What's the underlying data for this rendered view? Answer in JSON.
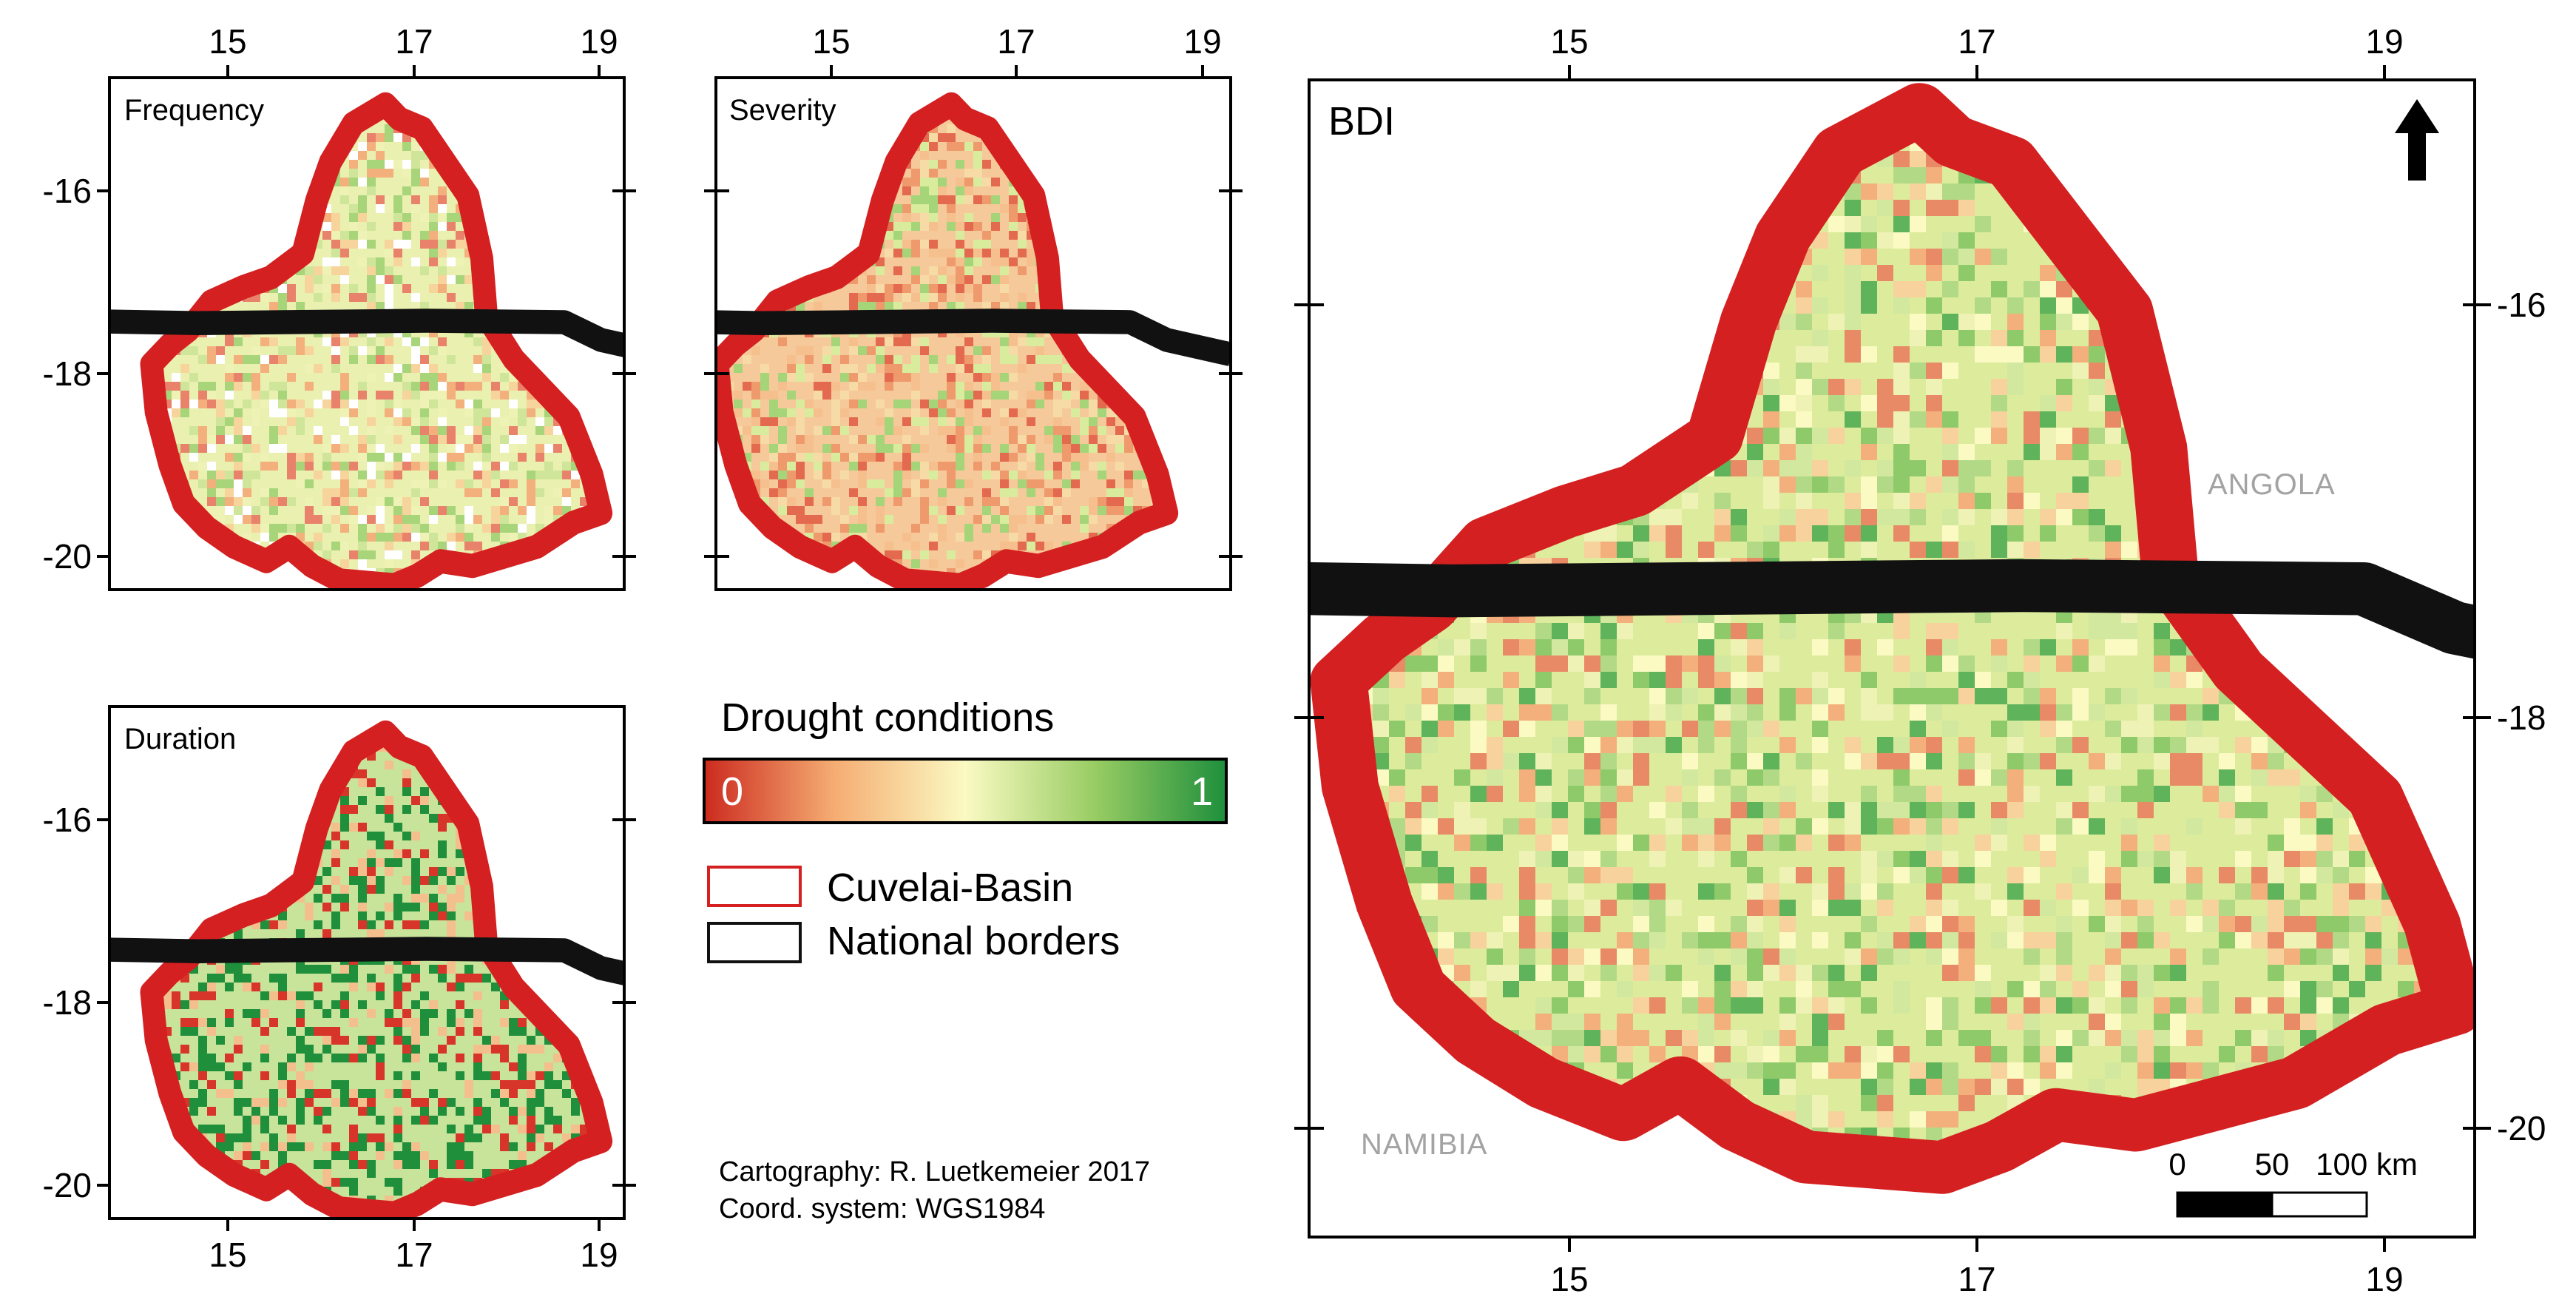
{
  "panels": {
    "frequency": {
      "title": "Frequency"
    },
    "severity": {
      "title": "Severity"
    },
    "duration": {
      "title": "Duration"
    },
    "bdi": {
      "title": "BDI"
    }
  },
  "small_axis": {
    "lon_ticks": [
      "15",
      "17",
      "19"
    ],
    "lat_ticks": [
      "-16",
      "-18",
      "-20"
    ]
  },
  "main_axis": {
    "lon_ticks": [
      "15",
      "17",
      "19"
    ],
    "lat_ticks": [
      "-16",
      "-18",
      "-20"
    ]
  },
  "countries": {
    "north": "ANGOLA",
    "south": "NAMIBIA"
  },
  "legend": {
    "title": "Drought conditions",
    "min_label": "0",
    "max_label": "1",
    "basin_label": "Cuvelai-Basin",
    "borders_label": "National borders",
    "colors": {
      "low": "#cc2a1e",
      "mid_low": "#f5ad73",
      "mid": "#fafac2",
      "mid_high": "#98cc63",
      "high": "#1e8f3c",
      "basin_outline": "#d42020",
      "border_line": "#111111"
    }
  },
  "credits": {
    "cartography": "Cartography: R. Luetkemeier 2017",
    "coord_system": "Coord. system: WGS1984"
  },
  "scale_bar": {
    "labels": [
      "0",
      "50",
      "100 km"
    ]
  },
  "north_arrow": {
    "icon": "north-arrow-icon"
  }
}
